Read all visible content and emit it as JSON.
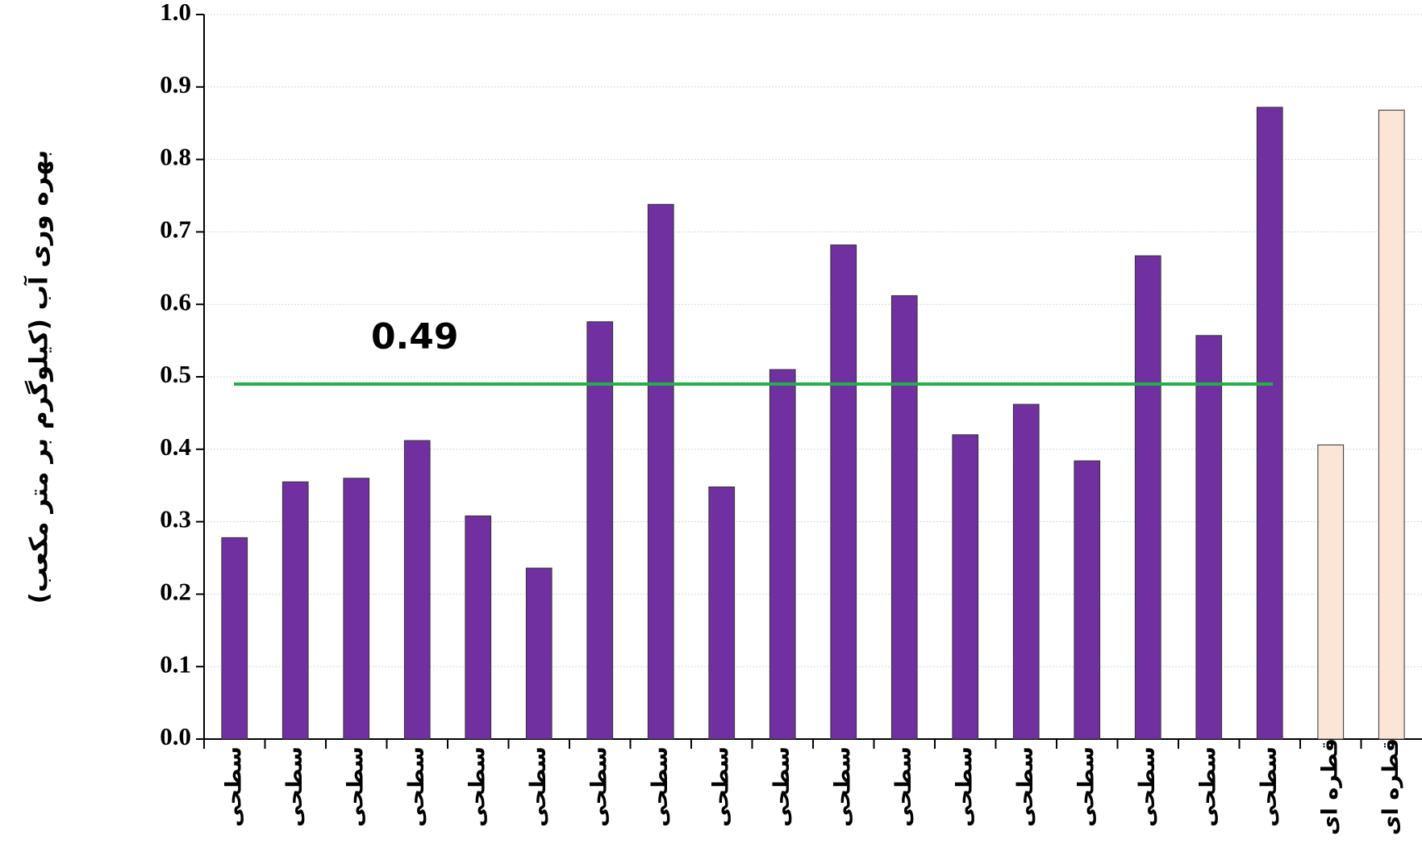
{
  "chart_data": {
    "type": "bar",
    "y_axis_label": "بهره وری آب (کیلوگرم بر متر مکعب)",
    "categories": [
      "سطحی",
      "سطحی",
      "سطحی",
      "سطحی",
      "سطحی",
      "سطحی",
      "سطحی",
      "سطحی",
      "سطحی",
      "سطحی",
      "سطحی",
      "سطحی",
      "سطحی",
      "سطحی",
      "سطحی",
      "سطحی",
      "سطحی",
      "سطحی",
      "قطره ای",
      "قطره ای"
    ],
    "values": [
      0.278,
      0.355,
      0.36,
      0.412,
      0.308,
      0.236,
      0.576,
      0.738,
      0.348,
      0.51,
      0.682,
      0.612,
      0.42,
      0.462,
      0.384,
      0.667,
      0.557,
      0.872,
      0.406,
      0.868
    ],
    "colors": [
      "#7030a0",
      "#7030a0",
      "#7030a0",
      "#7030a0",
      "#7030a0",
      "#7030a0",
      "#7030a0",
      "#7030a0",
      "#7030a0",
      "#7030a0",
      "#7030a0",
      "#7030a0",
      "#7030a0",
      "#7030a0",
      "#7030a0",
      "#7030a0",
      "#7030a0",
      "#7030a0",
      "#fbe5d6",
      "#fbe5d6"
    ],
    "reference_line": {
      "value": 0.49,
      "label": 0.49,
      "color": "#22b04b"
    },
    "ylim": [
      0,
      1
    ],
    "yticks": [
      {
        "value": 0,
        "label": "0.0"
      },
      0.1,
      0.2,
      0.3,
      0.4,
      0.5,
      0.6,
      0.7,
      0.8,
      0.9,
      {
        "value": 1,
        "label": "1.0"
      }
    ],
    "grid": true
  }
}
